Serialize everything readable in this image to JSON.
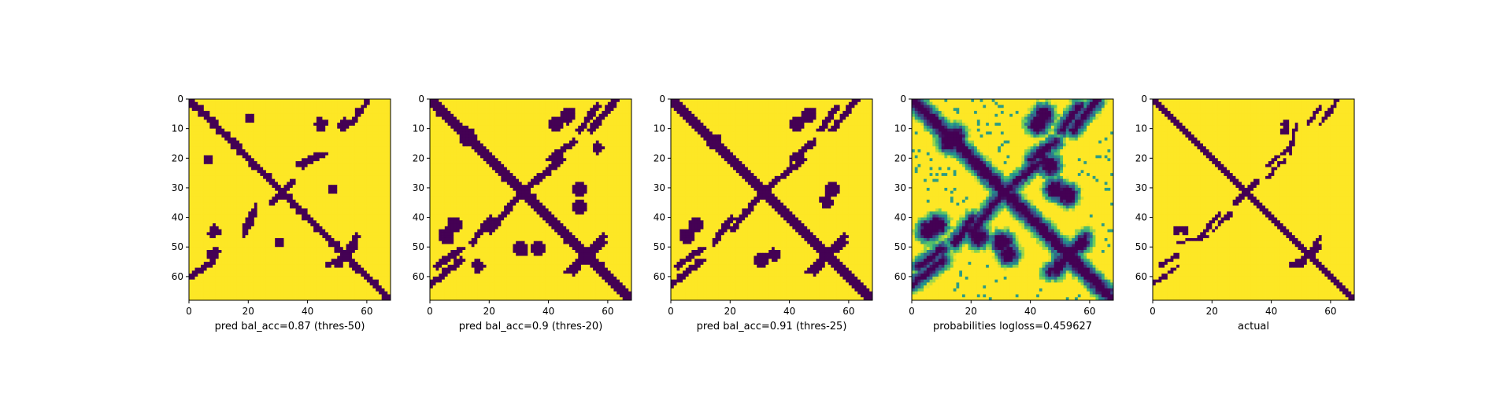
{
  "figure": {
    "background": "#ffffff"
  },
  "colors": {
    "low": "#440154",
    "high": "#fde725",
    "mid_teal": "#21918c",
    "mid_green": "#5ec962"
  },
  "chart_data": [
    {
      "type": "heatmap",
      "colormap": "viridis",
      "xlabel": "pred bal_acc=0.87 (thres-50)",
      "size": 68,
      "xticks": [
        0,
        20,
        40,
        60
      ],
      "yticks": [
        0,
        10,
        20,
        30,
        40,
        50,
        60
      ],
      "xlim": [
        0,
        68
      ],
      "ylim": [
        68,
        0
      ],
      "value_range": [
        0,
        1
      ],
      "pattern": {
        "diag_width": 1.6,
        "blobs": [
          {
            "i": 52,
            "j": 8,
            "r": 2.5
          },
          {
            "i": 20,
            "j": 6,
            "r": 2.0
          },
          {
            "i": 48,
            "j": 30,
            "r": 2.0
          },
          {
            "i": 8,
            "j": 44,
            "r": 2.2
          },
          {
            "i": 44,
            "j": 8,
            "r": 2.5
          }
        ],
        "lines": [
          {
            "i0": 60,
            "j0": 0,
            "i1": 54,
            "j1": 8,
            "w": 1.2
          },
          {
            "i0": 22,
            "j0": 36,
            "i1": 18,
            "j1": 44,
            "w": 1.2
          },
          {
            "i0": 38,
            "j0": 22,
            "i1": 46,
            "j1": 18,
            "w": 1.2
          },
          {
            "i0": 2,
            "j0": 58,
            "i1": 8,
            "j1": 54,
            "w": 1.2
          },
          {
            "i0": 56,
            "j0": 50,
            "i1": 46,
            "j1": 56,
            "w": 1.2
          }
        ]
      }
    },
    {
      "type": "heatmap",
      "colormap": "viridis",
      "xlabel": "pred bal_acc=0.9 (thres-20)",
      "size": 68,
      "xticks": [
        0,
        20,
        40,
        60
      ],
      "yticks": [
        0,
        10,
        20,
        30,
        40,
        50,
        60
      ],
      "xlim": [
        0,
        68
      ],
      "ylim": [
        68,
        0
      ],
      "value_range": [
        0,
        1
      ],
      "pattern": {
        "diag_width": 2.2,
        "blobs": [
          {
            "i": 46,
            "j": 5,
            "r": 3.2
          },
          {
            "i": 8,
            "j": 42,
            "r": 3.0
          },
          {
            "i": 16,
            "j": 56,
            "r": 2.5
          },
          {
            "i": 50,
            "j": 30,
            "r": 3.0
          },
          {
            "i": 36,
            "j": 50,
            "r": 2.8
          },
          {
            "i": 12,
            "j": 12,
            "r": 3.5
          }
        ],
        "lines": [
          {
            "i0": 62,
            "j0": 0,
            "i1": 54,
            "j1": 10,
            "w": 1.5
          },
          {
            "i0": 28,
            "j0": 34,
            "i1": 20,
            "j1": 44,
            "w": 1.5
          },
          {
            "i0": 40,
            "j0": 20,
            "i1": 48,
            "j1": 14,
            "w": 1.5
          },
          {
            "i0": 2,
            "j0": 56,
            "i1": 10,
            "j1": 50,
            "w": 1.5
          },
          {
            "i0": 58,
            "j0": 48,
            "i1": 46,
            "j1": 58,
            "w": 1.5
          }
        ]
      }
    },
    {
      "type": "heatmap",
      "colormap": "viridis",
      "xlabel": "pred bal_acc=0.91 (thres-25)",
      "size": 68,
      "xticks": [
        0,
        20,
        40,
        60
      ],
      "yticks": [
        0,
        10,
        20,
        30,
        40,
        50,
        60
      ],
      "xlim": [
        0,
        68
      ],
      "ylim": [
        68,
        0
      ],
      "value_range": [
        0,
        1
      ],
      "pattern": {
        "diag_width": 2.0,
        "blobs": [
          {
            "i": 46,
            "j": 5,
            "r": 3.0
          },
          {
            "i": 8,
            "j": 42,
            "r": 2.8
          },
          {
            "i": 54,
            "j": 30,
            "r": 2.8
          },
          {
            "i": 34,
            "j": 52,
            "r": 2.5
          },
          {
            "i": 14,
            "j": 14,
            "r": 3.2
          }
        ],
        "lines": [
          {
            "i0": 62,
            "j0": 0,
            "i1": 54,
            "j1": 10,
            "w": 1.4
          },
          {
            "i0": 28,
            "j0": 34,
            "i1": 20,
            "j1": 44,
            "w": 1.4
          },
          {
            "i0": 40,
            "j0": 20,
            "i1": 48,
            "j1": 14,
            "w": 1.4
          },
          {
            "i0": 2,
            "j0": 56,
            "i1": 10,
            "j1": 50,
            "w": 1.4
          },
          {
            "i0": 58,
            "j0": 48,
            "i1": 46,
            "j1": 58,
            "w": 1.4
          }
        ]
      }
    },
    {
      "type": "heatmap",
      "colormap": "viridis",
      "xlabel": "probabilities logloss=0.459627",
      "size": 68,
      "xticks": [
        0,
        20,
        40,
        60
      ],
      "yticks": [
        0,
        10,
        20,
        30,
        40,
        50,
        60
      ],
      "xlim": [
        0,
        68
      ],
      "ylim": [
        68,
        0
      ],
      "value_range": [
        0,
        1
      ],
      "pattern": {
        "diag_width": 2.0,
        "soft": true,
        "blobs": [
          {
            "i": 44,
            "j": 5,
            "r": 3.0
          },
          {
            "i": 8,
            "j": 42,
            "r": 3.0
          },
          {
            "i": 52,
            "j": 32,
            "r": 3.0
          },
          {
            "i": 30,
            "j": 48,
            "r": 3.0
          },
          {
            "i": 12,
            "j": 14,
            "r": 3.0
          },
          {
            "i": 22,
            "j": 46,
            "r": 3.0
          }
        ],
        "lines": [
          {
            "i0": 62,
            "j0": 0,
            "i1": 54,
            "j1": 10,
            "w": 1.4
          },
          {
            "i0": 28,
            "j0": 34,
            "i1": 20,
            "j1": 44,
            "w": 1.4
          },
          {
            "i0": 40,
            "j0": 20,
            "i1": 48,
            "j1": 14,
            "w": 1.4
          },
          {
            "i0": 2,
            "j0": 56,
            "i1": 10,
            "j1": 50,
            "w": 1.4
          },
          {
            "i0": 58,
            "j0": 48,
            "i1": 46,
            "j1": 58,
            "w": 1.4
          }
        ]
      }
    },
    {
      "type": "heatmap",
      "colormap": "viridis",
      "xlabel": "actual",
      "size": 68,
      "xticks": [
        0,
        20,
        40,
        60
      ],
      "yticks": [
        0,
        10,
        20,
        30,
        40,
        50,
        60
      ],
      "xlim": [
        0,
        68
      ],
      "ylim": [
        68,
        0
      ],
      "value_range": [
        0,
        1
      ],
      "pattern": {
        "diag_width": 1.4,
        "blobs": [
          {
            "i": 44,
            "j": 8,
            "r": 1.8
          },
          {
            "i": 10,
            "j": 44,
            "r": 1.8
          }
        ],
        "lines": [
          {
            "i0": 62,
            "j0": 0,
            "i1": 56,
            "j1": 8,
            "w": 1.0
          },
          {
            "i0": 26,
            "j0": 38,
            "i1": 20,
            "j1": 44,
            "w": 1.0
          },
          {
            "i0": 38,
            "j0": 22,
            "i1": 46,
            "j1": 16,
            "w": 1.0
          },
          {
            "i0": 2,
            "j0": 56,
            "i1": 8,
            "j1": 52,
            "w": 1.0
          },
          {
            "i0": 56,
            "j0": 50,
            "i1": 46,
            "j1": 56,
            "w": 1.0
          },
          {
            "i0": 48,
            "j0": 8,
            "i1": 46,
            "j1": 18,
            "w": 0.9
          }
        ]
      }
    }
  ]
}
